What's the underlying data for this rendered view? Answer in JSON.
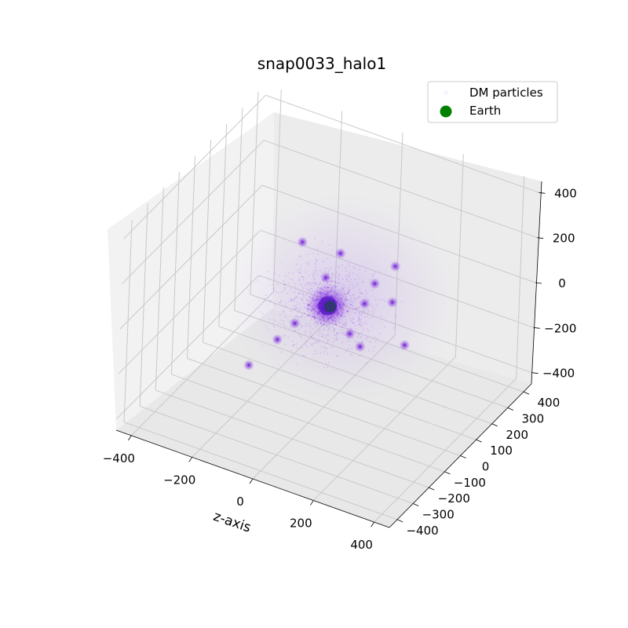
{
  "chart_data": {
    "type": "scatter",
    "projection": "3d",
    "title": "snap0033_halo1",
    "xlabel": "z-axis",
    "ylabel": "",
    "zlabel": "",
    "xlim": [
      -450,
      450
    ],
    "ylim": [
      -450,
      450
    ],
    "zlim": [
      -450,
      450
    ],
    "x_ticks": [
      "−400",
      "−200",
      "0",
      "200",
      "400"
    ],
    "y_ticks": [
      "−400",
      "−300",
      "−200",
      "−100",
      "0",
      "100",
      "200",
      "300",
      "400"
    ],
    "z_ticks": [
      "−400",
      "−200",
      "0",
      "200",
      "400"
    ],
    "grid": true,
    "legend_position": "top-right",
    "series": [
      {
        "name": "DM particles",
        "color": "#8a2be2",
        "main_halo_center": [
          0,
          0,
          0
        ],
        "subhalos": [
          {
            "x": -95,
            "y": 10,
            "z": 230
          },
          {
            "x": 150,
            "y": 0,
            "z": 170
          },
          {
            "x": 170,
            "y": 80,
            "z": 40
          },
          {
            "x": -10,
            "y": 0,
            "z": 120
          },
          {
            "x": 90,
            "y": 60,
            "z": 10
          },
          {
            "x": 230,
            "y": 50,
            "z": -100
          },
          {
            "x": 120,
            "y": -20,
            "z": -110
          },
          {
            "x": 90,
            "y": -30,
            "z": -60
          },
          {
            "x": -130,
            "y": -60,
            "z": -170
          },
          {
            "x": -190,
            "y": -120,
            "z": -270
          },
          {
            "x": -90,
            "y": -30,
            "z": -100
          },
          {
            "x": 30,
            "y": 10,
            "z": 240
          },
          {
            "x": 200,
            "y": 30,
            "z": 250
          }
        ]
      },
      {
        "name": "Earth",
        "color": "#008000",
        "points": [
          {
            "x": 8,
            "y": 0,
            "z": 0
          }
        ]
      }
    ]
  }
}
